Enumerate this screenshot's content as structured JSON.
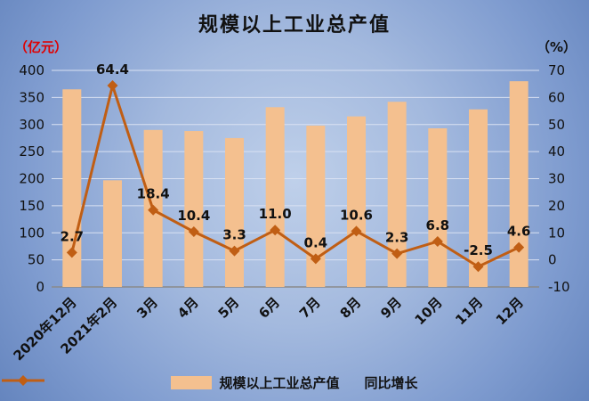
{
  "title": "规模以上工业总产值",
  "left_axis_unit": "（亿元）",
  "right_axis_unit": "（%）",
  "legend": {
    "bars": "规模以上工业总产值",
    "line": "同比增长"
  },
  "colors": {
    "bar": "#f4c08f",
    "line": "#c05e14",
    "gridline": "#d9e1f2",
    "axis_line": "#8a8a8a",
    "tick_text": "#111111",
    "data_label": "#111111"
  },
  "chart_data": {
    "type": "bar+line combo",
    "categories": [
      "2020年12月",
      "2021年2月",
      "3月",
      "4月",
      "5月",
      "6月",
      "7月",
      "8月",
      "9月",
      "10月",
      "11月",
      "12月"
    ],
    "series": [
      {
        "name": "规模以上工业总产值",
        "type": "bar",
        "axis": "left",
        "values": [
          365,
          197,
          290,
          288,
          275,
          332,
          298,
          315,
          342,
          293,
          328,
          380
        ]
      },
      {
        "name": "同比增长",
        "type": "line",
        "axis": "right",
        "values": [
          2.7,
          64.4,
          18.4,
          10.4,
          3.3,
          11.0,
          0.4,
          10.6,
          2.3,
          6.8,
          -2.5,
          4.6
        ],
        "labels": [
          "2.7",
          "64.4",
          "18.4",
          "10.4",
          "3.3",
          "11.0",
          "0.4",
          "10.6",
          "2.3",
          "6.8",
          "-2.5",
          "4.6"
        ]
      }
    ],
    "left_axis": {
      "min": 0,
      "max": 400,
      "step": 50
    },
    "right_axis": {
      "min": -10,
      "max": 70,
      "step": 10
    },
    "grid": true,
    "legend_position": "bottom"
  }
}
